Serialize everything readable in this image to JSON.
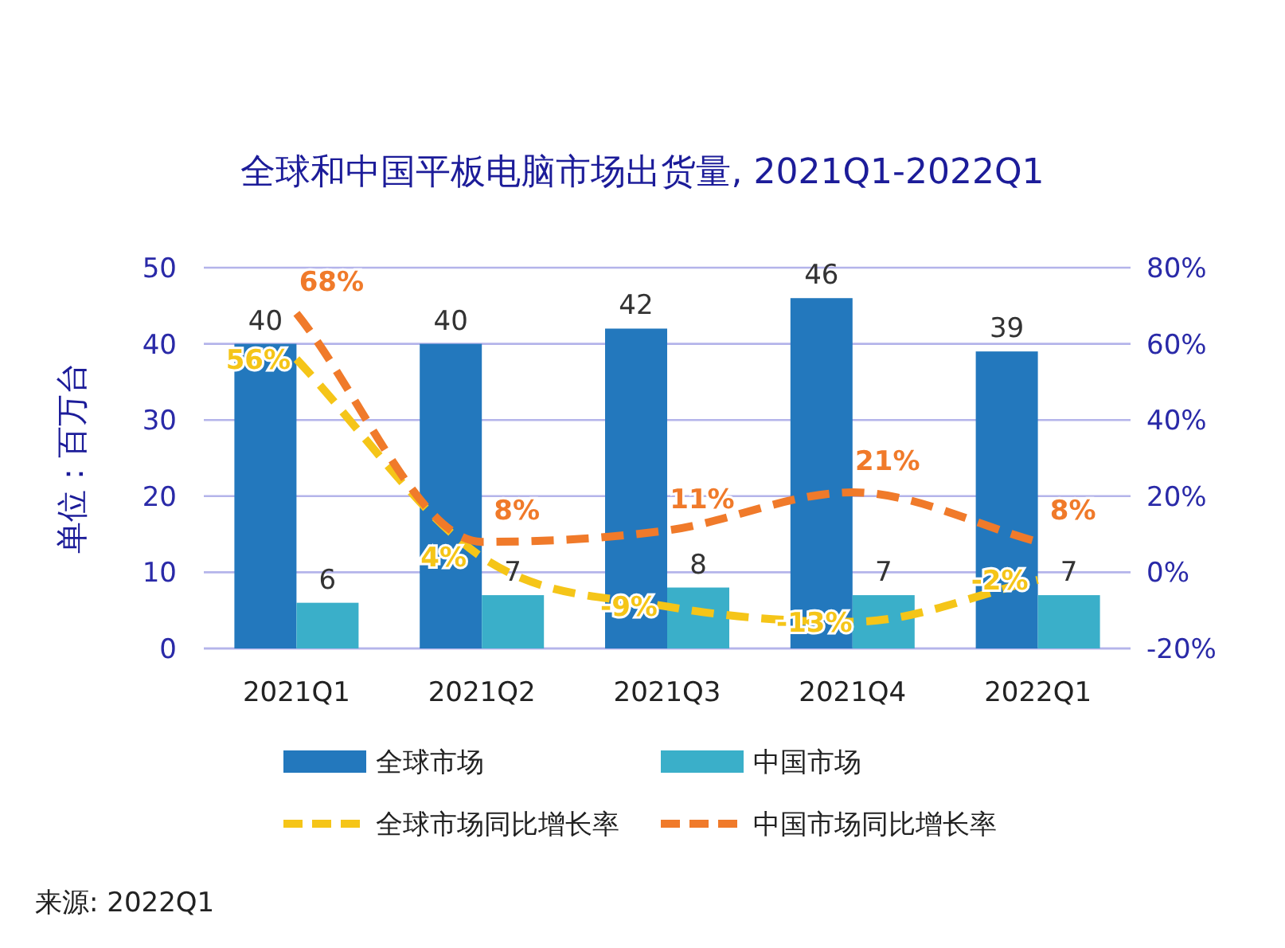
{
  "chart_data": {
    "type": "bar",
    "title": "全球和中国平板电脑市场出货量, 2021Q1-2022Q1",
    "ylabel": "单位：百万台",
    "categories": [
      "2021Q1",
      "2021Q2",
      "2021Q3",
      "2021Q4",
      "2022Q1"
    ],
    "series": [
      {
        "name": "全球市场",
        "color": "#2378bd",
        "values": [
          40,
          40,
          42,
          46,
          39
        ],
        "value_labels": [
          "40",
          "40",
          "42",
          "46",
          "39"
        ]
      },
      {
        "name": "中国市场",
        "color": "#3aafc9",
        "values": [
          6,
          7,
          8,
          7,
          7
        ],
        "value_labels": [
          "6",
          "7",
          "8",
          "7",
          "7"
        ]
      },
      {
        "name": "全球市场同比增长率",
        "type": "line",
        "axis": "y2",
        "color": "#f5c518",
        "values": [
          56,
          4,
          -9,
          -13,
          -2
        ],
        "value_labels": [
          "56%",
          "4%",
          "-9%",
          "-13%",
          "-2%"
        ]
      },
      {
        "name": "中国市场同比增长率",
        "type": "line",
        "axis": "y2",
        "color": "#f07a2a",
        "values": [
          68,
          8,
          11,
          21,
          8
        ],
        "value_labels": [
          "68%",
          "8%",
          "11%",
          "21%",
          "8%"
        ]
      }
    ],
    "ylim": [
      0,
      50
    ],
    "yticks": [
      0,
      10,
      20,
      30,
      40,
      50
    ],
    "y2lim": [
      -20,
      80
    ],
    "y2ticks": [
      {
        "value": -20,
        "label": "-20%"
      },
      {
        "value": 0,
        "label": "0%"
      },
      {
        "value": 20,
        "label": "20%"
      },
      {
        "value": 40,
        "label": "40%"
      },
      {
        "value": 60,
        "label": "60%"
      },
      {
        "value": 80,
        "label": "80%"
      }
    ],
    "grid": "y",
    "legend": "bottom",
    "line_style": "dashed",
    "marker": "none",
    "annotations": [
      "来源: 2022Q1"
    ]
  }
}
